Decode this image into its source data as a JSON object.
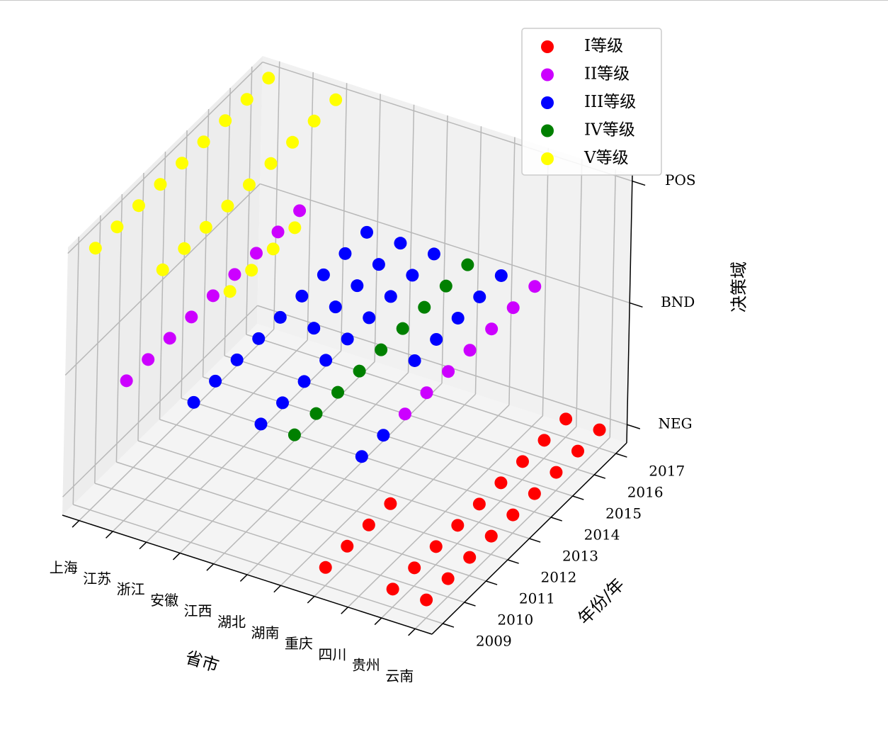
{
  "chart_data": {
    "type": "scatter3d",
    "xlabel": "省市",
    "ylabel": "年份/年",
    "zlabel": "决策域",
    "categories": [
      "上海",
      "江苏",
      "浙江",
      "安徽",
      "江西",
      "湖北",
      "湖南",
      "重庆",
      "四川",
      "贵州",
      "云南"
    ],
    "xlim": [
      -0.5,
      10.5
    ],
    "ylim": [
      2008.5,
      2017.5
    ],
    "yticks": [
      2009,
      2010,
      2011,
      2012,
      2013,
      2014,
      2015,
      2016,
      2017
    ],
    "zlim": [
      0.85,
      3.05
    ],
    "zticks": [
      {
        "value": 1,
        "label": "NEG"
      },
      {
        "value": 2,
        "label": "BND"
      },
      {
        "value": 3,
        "label": "POS"
      }
    ],
    "grid": true,
    "legend": "upper right",
    "series": [
      {
        "name": "I等级",
        "color": "#ff0000",
        "x": [
          "贵州",
          "贵州",
          "贵州",
          "贵州",
          "贵州",
          "贵州",
          "贵州",
          "贵州",
          "贵州",
          "云南",
          "云南",
          "云南",
          "云南",
          "云南",
          "云南",
          "云南",
          "云南",
          "云南",
          "重庆",
          "重庆",
          "重庆",
          "重庆"
        ],
        "y": [
          2009,
          2010,
          2011,
          2012,
          2013,
          2014,
          2015,
          2016,
          2017,
          2009,
          2010,
          2011,
          2012,
          2013,
          2014,
          2015,
          2016,
          2017,
          2009,
          2010,
          2011,
          2012
        ],
        "z": [
          1,
          1,
          1,
          1,
          1,
          1,
          1,
          1,
          1,
          1,
          1,
          1,
          1,
          1,
          1,
          1,
          1,
          1,
          1,
          1,
          1,
          1
        ]
      },
      {
        "name": "II等级",
        "color": "#cc00ff",
        "x": [
          "江苏",
          "江苏",
          "江苏",
          "江苏",
          "江苏",
          "江苏",
          "江苏",
          "江苏",
          "江苏",
          "四川",
          "四川",
          "四川",
          "四川",
          "四川",
          "四川",
          "四川"
        ],
        "y": [
          2009,
          2010,
          2011,
          2012,
          2013,
          2014,
          2015,
          2016,
          2017,
          2011,
          2012,
          2013,
          2014,
          2015,
          2016,
          2017
        ],
        "z": [
          2,
          2,
          2,
          2,
          2,
          2,
          2,
          2,
          2,
          2,
          2,
          2,
          2,
          2,
          2,
          2
        ]
      },
      {
        "name": "III等级",
        "color": "#0000ff",
        "x": [
          "安徽",
          "安徽",
          "安徽",
          "安徽",
          "安徽",
          "安徽",
          "安徽",
          "安徽",
          "安徽",
          "湖北",
          "湖北",
          "湖北",
          "湖北",
          "湖北",
          "湖北",
          "湖北",
          "湖北",
          "湖北",
          "重庆",
          "重庆",
          "重庆",
          "重庆",
          "重庆",
          "四川",
          "四川",
          "江西",
          "江西",
          "江西",
          "江西",
          "江西"
        ],
        "y": [
          2009,
          2010,
          2011,
          2012,
          2013,
          2014,
          2015,
          2016,
          2017,
          2009,
          2010,
          2011,
          2012,
          2013,
          2014,
          2015,
          2016,
          2017,
          2013,
          2014,
          2015,
          2016,
          2017,
          2009,
          2010,
          2013,
          2014,
          2015,
          2016,
          2017
        ],
        "z": [
          2,
          2,
          2,
          2,
          2,
          2,
          2,
          2,
          2,
          2,
          2,
          2,
          2,
          2,
          2,
          2,
          2,
          2,
          2,
          2,
          2,
          2,
          2,
          2,
          2,
          2,
          2,
          2,
          2,
          2
        ]
      },
      {
        "name": "IV等级",
        "color": "#008000",
        "x": [
          "湖南",
          "湖南",
          "湖南",
          "湖南",
          "湖南",
          "湖南",
          "湖南",
          "湖南",
          "湖南"
        ],
        "y": [
          2009,
          2010,
          2011,
          2012,
          2013,
          2014,
          2015,
          2016,
          2017
        ],
        "z": [
          2,
          2,
          2,
          2,
          2,
          2,
          2,
          2,
          2
        ]
      },
      {
        "name": "V等级",
        "color": "#ffff00",
        "x": [
          "上海",
          "上海",
          "上海",
          "上海",
          "上海",
          "上海",
          "上海",
          "上海",
          "上海",
          "浙江",
          "浙江",
          "浙江",
          "浙江",
          "浙江",
          "浙江",
          "浙江",
          "浙江",
          "浙江",
          "江西",
          "江西",
          "江西",
          "江西"
        ],
        "y": [
          2009,
          2010,
          2011,
          2012,
          2013,
          2014,
          2015,
          2016,
          2017,
          2009,
          2010,
          2011,
          2012,
          2013,
          2014,
          2015,
          2016,
          2017,
          2009,
          2010,
          2011,
          2012
        ],
        "z": [
          3,
          3,
          3,
          3,
          3,
          3,
          3,
          3,
          3,
          3,
          3,
          3,
          3,
          3,
          3,
          3,
          3,
          3,
          3,
          3,
          3,
          3
        ]
      }
    ]
  }
}
